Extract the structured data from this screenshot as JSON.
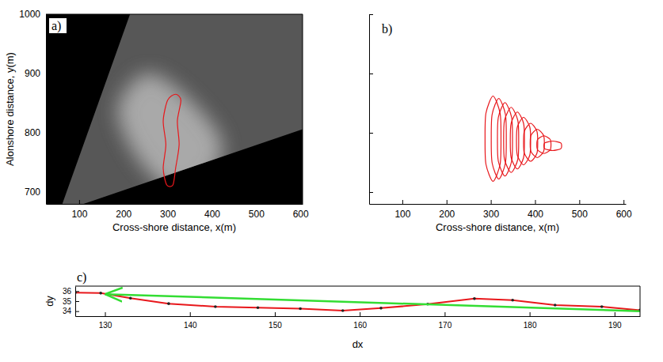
{
  "chart_data": [
    {
      "type": "image",
      "panel_label": "a)",
      "x_label": "Cross-shore distance, x(m)",
      "y_label": "Alonshore distance, y(m)",
      "xlim": [
        25,
        605
      ],
      "xticks": [
        100,
        200,
        300,
        400,
        500,
        600
      ],
      "ylim": [
        680,
        1000
      ],
      "yticks": [
        700,
        800,
        900,
        1000
      ],
      "footprint": {
        "x": [
          62,
          215,
          605,
          605,
          110
        ],
        "y": [
          680,
          1000,
          1000,
          806,
          680
        ]
      },
      "bright_region": {
        "x": [
          190,
          250,
          330,
          420,
          400,
          320,
          250,
          200
        ],
        "y": [
          850,
          900,
          870,
          790,
          730,
          700,
          740,
          800
        ]
      },
      "color": "#e8171b",
      "series": [
        {
          "x": [
            318,
            330,
            322,
            326,
            318,
            312,
            298,
            290,
            296,
            290,
            300
          ],
          "values": [
            865,
            855,
            820,
            780,
            740,
            712,
            712,
            740,
            780,
            820,
            855
          ]
        }
      ]
    },
    {
      "type": "contour",
      "panel_label": "b)",
      "x_label": "Cross-shore distance, x(m)",
      "xlim": [
        25,
        605
      ],
      "xticks": [
        100,
        200,
        300,
        400,
        500,
        600
      ],
      "ylim": [
        680,
        1000
      ],
      "yticks": [
        700,
        800,
        900,
        1000
      ],
      "tick_labels": "x",
      "color": "#e8171b",
      "series": [
        {
          "x": [
            305,
            321,
            323,
            321,
            305,
            289,
            287,
            289
          ],
          "values": [
            862,
            833,
            790,
            747,
            718,
            747,
            790,
            833
          ]
        },
        {
          "x": [
            318,
            333,
            335,
            333,
            318,
            303,
            301,
            303
          ],
          "values": [
            858,
            831,
            790,
            749,
            722,
            749,
            790,
            831
          ]
        },
        {
          "x": [
            332,
            347,
            349,
            347,
            332,
            317,
            315,
            317
          ],
          "values": [
            851,
            826,
            789,
            752,
            727,
            752,
            789,
            826
          ]
        },
        {
          "x": [
            346,
            361,
            363,
            361,
            346,
            331,
            329,
            331
          ],
          "values": [
            843,
            821,
            788,
            755,
            733,
            755,
            788,
            821
          ]
        },
        {
          "x": [
            360,
            374,
            376,
            374,
            360,
            346,
            344,
            346
          ],
          "values": [
            835,
            816,
            787,
            758,
            739,
            758,
            787,
            816
          ]
        },
        {
          "x": [
            374,
            388,
            390,
            388,
            374,
            360,
            358,
            360
          ],
          "values": [
            826,
            810,
            786,
            762,
            746,
            762,
            786,
            810
          ]
        },
        {
          "x": [
            390,
            404,
            406,
            404,
            390,
            376,
            374,
            376
          ],
          "values": [
            816,
            803,
            784,
            765,
            752,
            765,
            784,
            803
          ]
        },
        {
          "x": [
            405,
            419,
            421,
            419,
            405,
            391,
            389,
            391
          ],
          "values": [
            806,
            796,
            782,
            768,
            758,
            768,
            782,
            796
          ]
        },
        {
          "x": [
            420,
            434,
            436,
            434,
            420,
            406,
            404,
            406
          ],
          "values": [
            795,
            789,
            780,
            771,
            765,
            771,
            780,
            789
          ]
        },
        {
          "x": [
            440,
            458,
            460,
            458,
            440,
            422,
            420,
            422
          ],
          "values": [
            786,
            783,
            778,
            773,
            770,
            773,
            778,
            783
          ]
        }
      ]
    },
    {
      "type": "line",
      "panel_label": "c)",
      "x_label": "dx",
      "y_label": "dy",
      "xlim": [
        126.5,
        193
      ],
      "xticks": [
        130,
        140,
        150,
        160,
        170,
        180,
        190
      ],
      "ylim": [
        33.5,
        36.5
      ],
      "yticks": [
        34,
        35,
        36
      ],
      "series": [
        {
          "color": "#e8171b",
          "marker": "dot",
          "x": [
            126.5,
            129.5,
            133,
            137.5,
            143,
            148,
            153,
            158,
            162.5,
            168,
            173.5,
            178,
            183,
            188.5,
            193
          ],
          "values": [
            35.85,
            35.8,
            35.3,
            34.75,
            34.45,
            34.35,
            34.25,
            34.05,
            34.3,
            34.7,
            35.25,
            35.1,
            34.6,
            34.45,
            34.1
          ]
        }
      ],
      "arrow": {
        "x": [
          193,
          130
        ],
        "y": [
          34.0,
          35.7
        ],
        "color": "#33dd33"
      }
    }
  ]
}
